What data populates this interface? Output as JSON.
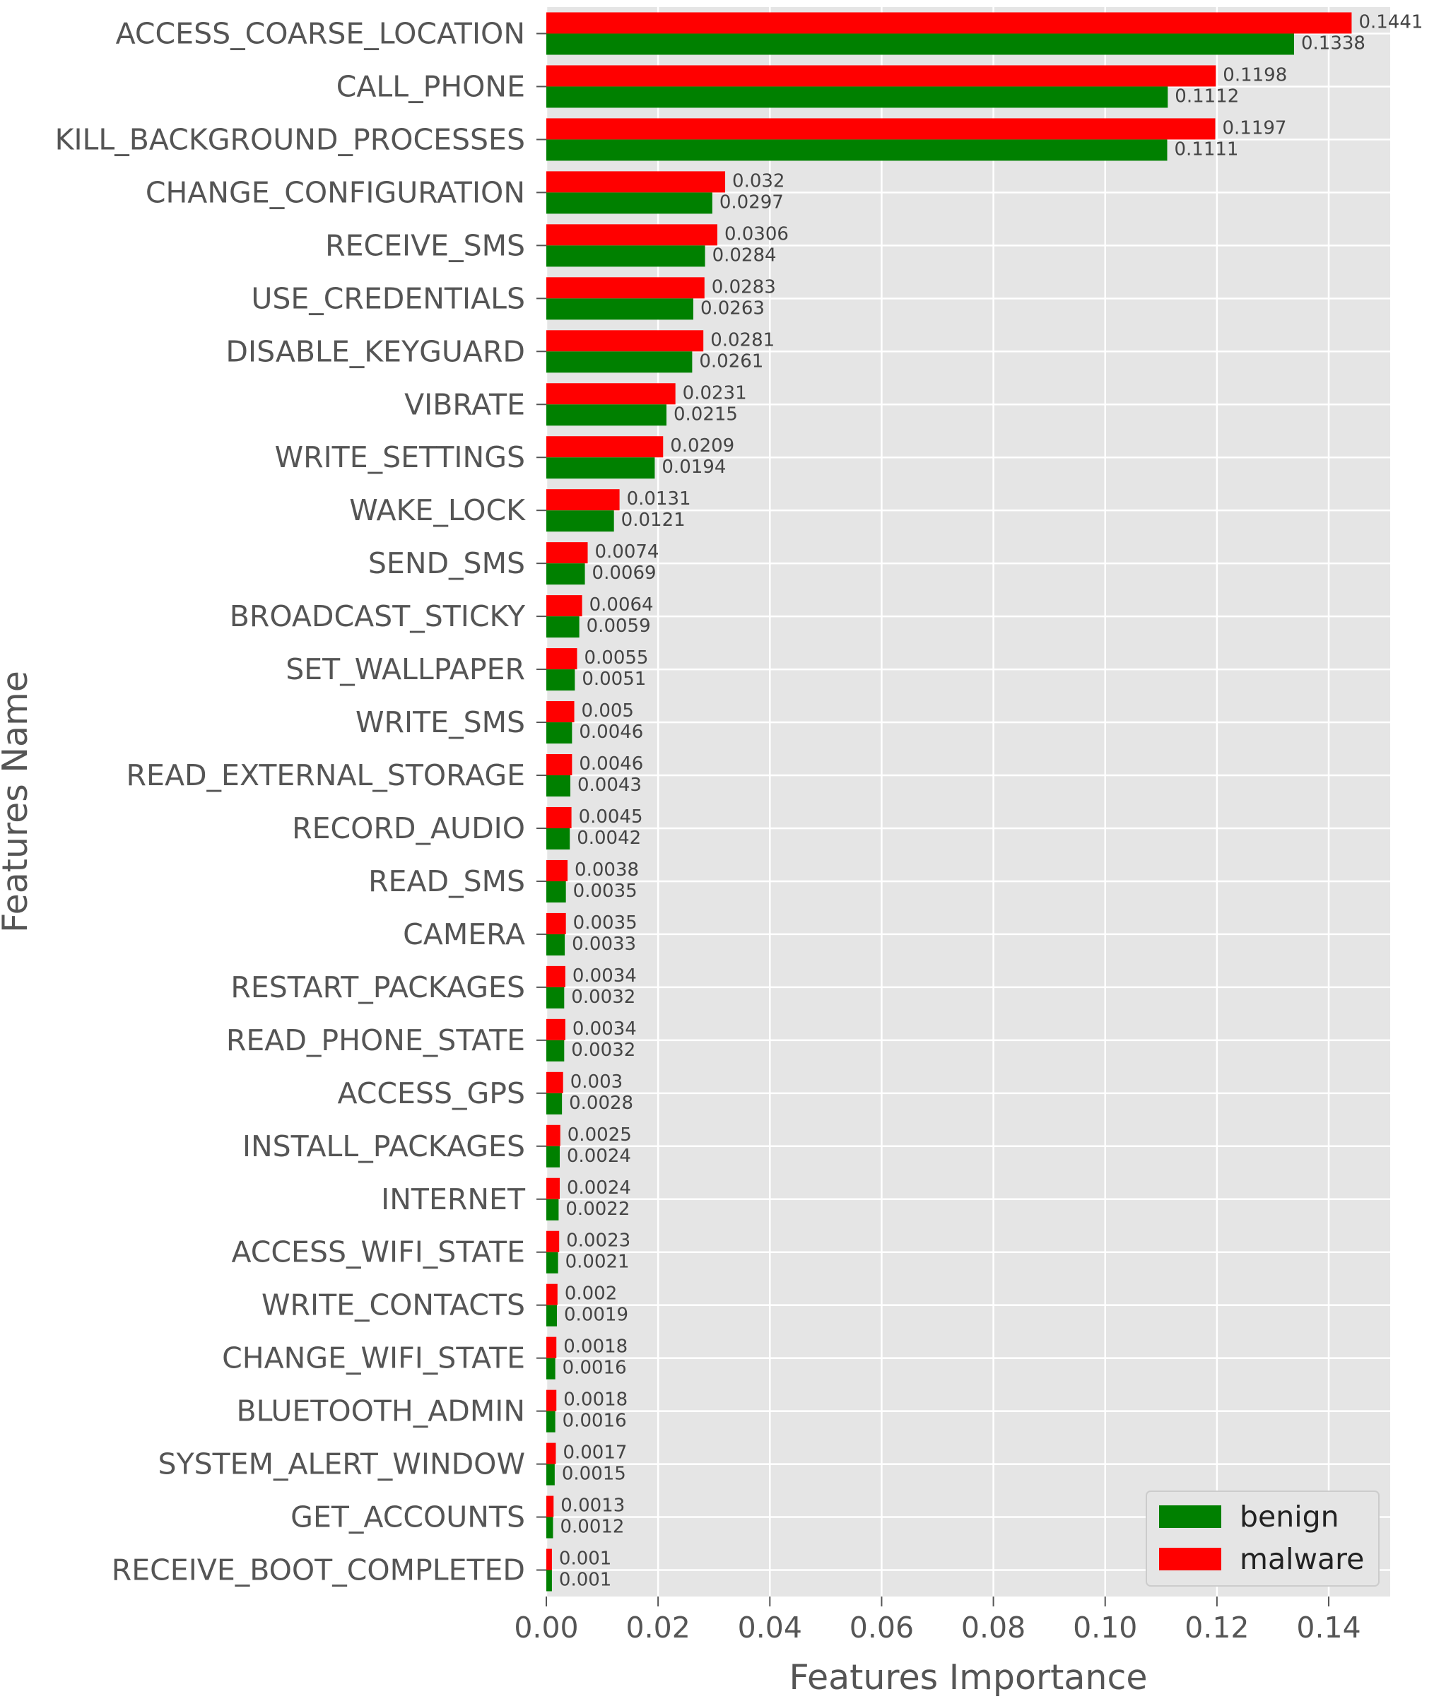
{
  "chart_data": {
    "type": "bar",
    "orientation": "horizontal",
    "title": "",
    "xlabel": "Features Importance",
    "ylabel": "Features Name",
    "xlim": [
      0.0,
      0.151
    ],
    "xticks": [
      "0.00",
      "0.02",
      "0.04",
      "0.06",
      "0.08",
      "0.10",
      "0.12",
      "0.14"
    ],
    "grid": true,
    "legend_position": "bottom-right",
    "categories": [
      "ACCESS_COARSE_LOCATION",
      "CALL_PHONE",
      "KILL_BACKGROUND_PROCESSES",
      "CHANGE_CONFIGURATION",
      "RECEIVE_SMS",
      "USE_CREDENTIALS",
      "DISABLE_KEYGUARD",
      "VIBRATE",
      "WRITE_SETTINGS",
      "WAKE_LOCK",
      "SEND_SMS",
      "BROADCAST_STICKY",
      "SET_WALLPAPER",
      "WRITE_SMS",
      "READ_EXTERNAL_STORAGE",
      "RECORD_AUDIO",
      "READ_SMS",
      "CAMERA",
      "RESTART_PACKAGES",
      "READ_PHONE_STATE",
      "ACCESS_GPS",
      "INSTALL_PACKAGES",
      "INTERNET",
      "ACCESS_WIFI_STATE",
      "WRITE_CONTACTS",
      "CHANGE_WIFI_STATE",
      "BLUETOOTH_ADMIN",
      "SYSTEM_ALERT_WINDOW",
      "GET_ACCOUNTS",
      "RECEIVE_BOOT_COMPLETED"
    ],
    "series": [
      {
        "name": "malware",
        "color": "#ff0000",
        "values": [
          0.1441,
          0.1198,
          0.1197,
          0.032,
          0.0306,
          0.0283,
          0.0281,
          0.0231,
          0.0209,
          0.0131,
          0.0074,
          0.0064,
          0.0055,
          0.005,
          0.0046,
          0.0045,
          0.0038,
          0.0035,
          0.0034,
          0.0034,
          0.003,
          0.0025,
          0.0024,
          0.0023,
          0.002,
          0.0018,
          0.0018,
          0.0017,
          0.0013,
          0.001
        ],
        "labels": [
          "0.1441",
          "0.1198",
          "0.1197",
          "0.032",
          "0.0306",
          "0.0283",
          "0.0281",
          "0.0231",
          "0.0209",
          "0.0131",
          "0.0074",
          "0.0064",
          "0.0055",
          "0.005",
          "0.0046",
          "0.0045",
          "0.0038",
          "0.0035",
          "0.0034",
          "0.0034",
          "0.003",
          "0.0025",
          "0.0024",
          "0.0023",
          "0.002",
          "0.0018",
          "0.0018",
          "0.0017",
          "0.0013",
          "0.001"
        ]
      },
      {
        "name": "benign",
        "color": "#008000",
        "values": [
          0.1338,
          0.1112,
          0.1111,
          0.0297,
          0.0284,
          0.0263,
          0.0261,
          0.0215,
          0.0194,
          0.0121,
          0.0069,
          0.0059,
          0.0051,
          0.0046,
          0.0043,
          0.0042,
          0.0035,
          0.0033,
          0.0032,
          0.0032,
          0.0028,
          0.0024,
          0.0022,
          0.0021,
          0.0019,
          0.0016,
          0.0016,
          0.0015,
          0.0012,
          0.001
        ],
        "labels": [
          "0.1338",
          "0.1112",
          "0.1111",
          "0.0297",
          "0.0284",
          "0.0263",
          "0.0261",
          "0.0215",
          "0.0194",
          "0.0121",
          "0.0069",
          "0.0059",
          "0.0051",
          "0.0046",
          "0.0043",
          "0.0042",
          "0.0035",
          "0.0033",
          "0.0032",
          "0.0032",
          "0.0028",
          "0.0024",
          "0.0022",
          "0.0021",
          "0.0019",
          "0.0016",
          "0.0016",
          "0.0015",
          "0.0012",
          "0.001"
        ]
      }
    ],
    "legend": [
      {
        "label": "benign",
        "color": "#008000"
      },
      {
        "label": "malware",
        "color": "#ff0000"
      }
    ],
    "colors": {
      "plot_background": "#e5e5e5",
      "grid": "#ffffff",
      "text": "#555555",
      "label_text": "#444444"
    }
  }
}
